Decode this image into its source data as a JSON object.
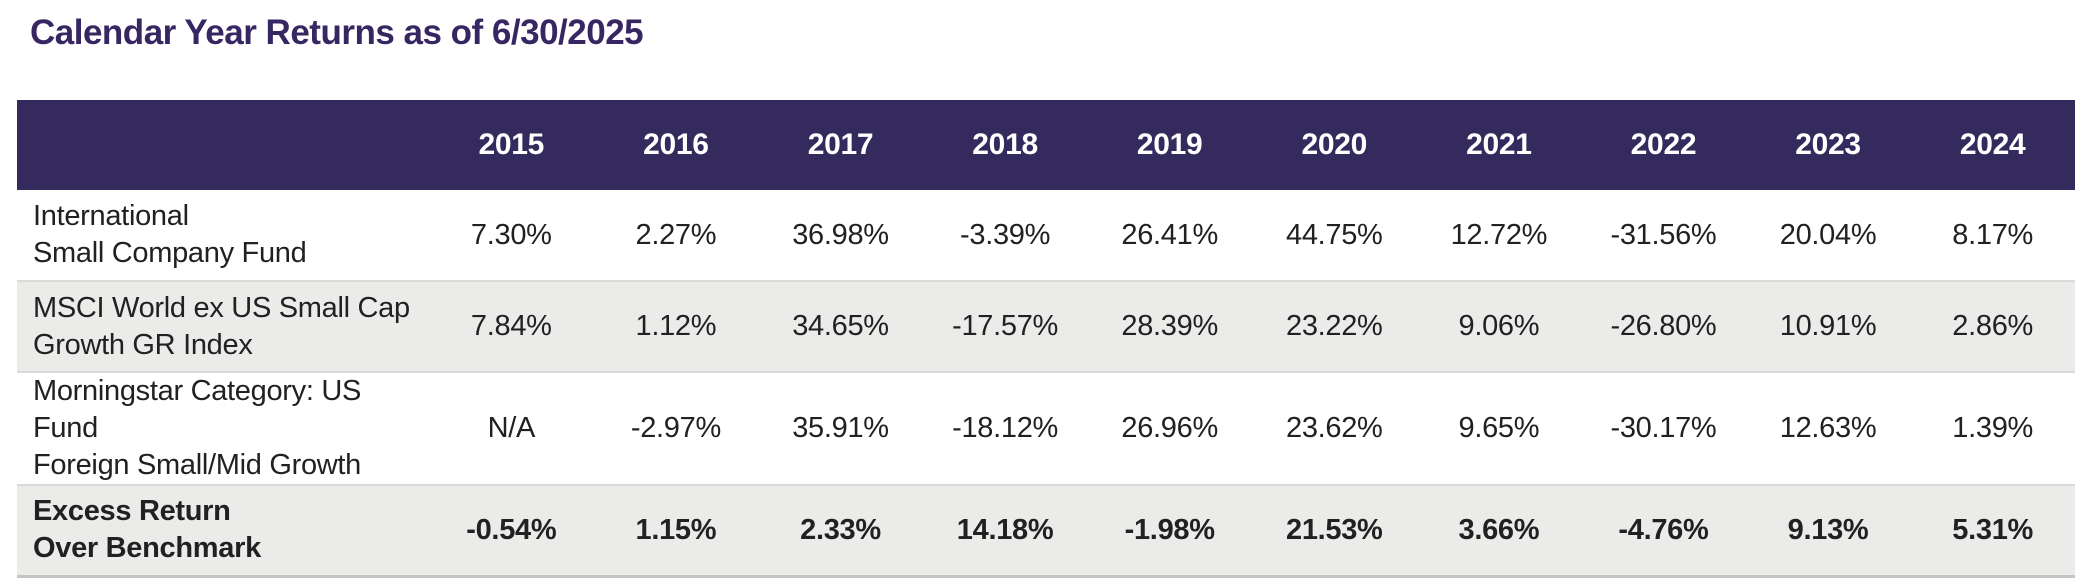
{
  "title": "Calendar Year Returns as of 6/30/2025",
  "colors": {
    "title_text": "#362763",
    "header_bg": "#342a5e",
    "header_text": "#ffffff",
    "row_alt_bg": "#ebecea",
    "body_text": "#232021",
    "divider": "#dadbd9"
  },
  "table": {
    "header": {
      "years": [
        "2015",
        "2016",
        "2017",
        "2018",
        "2019",
        "2020",
        "2021",
        "2022",
        "2023",
        "2024"
      ]
    },
    "rows": [
      {
        "label_lines": [
          "International",
          "Small Company Fund"
        ],
        "values": [
          "7.30%",
          "2.27%",
          "36.98%",
          "-3.39%",
          "26.41%",
          "44.75%",
          "12.72%",
          "-31.56%",
          "20.04%",
          "8.17%"
        ]
      },
      {
        "label_lines": [
          "MSCI World ex US Small Cap",
          "Growth GR Index"
        ],
        "values": [
          "7.84%",
          "1.12%",
          "34.65%",
          "-17.57%",
          "28.39%",
          "23.22%",
          "9.06%",
          "-26.80%",
          "10.91%",
          "2.86%"
        ]
      },
      {
        "label_lines": [
          "Morningstar Category: US Fund",
          "Foreign Small/Mid Growth"
        ],
        "values": [
          "N/A",
          "-2.97%",
          "35.91%",
          "-18.12%",
          "26.96%",
          "23.62%",
          "9.65%",
          "-30.17%",
          "12.63%",
          "1.39%"
        ]
      },
      {
        "label_lines": [
          "Excess Return",
          "Over Benchmark"
        ],
        "values": [
          "-0.54%",
          "1.15%",
          "2.33%",
          "14.18%",
          "-1.98%",
          "21.53%",
          "3.66%",
          "-4.76%",
          "9.13%",
          "5.31%"
        ]
      }
    ]
  },
  "chart_data": {
    "type": "table",
    "title": "Calendar Year Returns as of 6/30/2025",
    "categories": [
      2015,
      2016,
      2017,
      2018,
      2019,
      2020,
      2021,
      2022,
      2023,
      2024
    ],
    "unit": "%",
    "series": [
      {
        "name": "International Small Company Fund",
        "values": [
          7.3,
          2.27,
          36.98,
          -3.39,
          26.41,
          44.75,
          12.72,
          -31.56,
          20.04,
          8.17
        ]
      },
      {
        "name": "MSCI World ex US Small Cap Growth GR Index",
        "values": [
          7.84,
          1.12,
          34.65,
          -17.57,
          28.39,
          23.22,
          9.06,
          -26.8,
          10.91,
          2.86
        ]
      },
      {
        "name": "Morningstar Category: US Fund Foreign Small/Mid Growth",
        "values": [
          null,
          -2.97,
          35.91,
          -18.12,
          26.96,
          23.62,
          9.65,
          -30.17,
          12.63,
          1.39
        ],
        "note_first_value_display": "N/A"
      },
      {
        "name": "Excess Return Over Benchmark",
        "values": [
          -0.54,
          1.15,
          2.33,
          14.18,
          -1.98,
          21.53,
          3.66,
          -4.76,
          9.13,
          5.31
        ]
      }
    ]
  }
}
